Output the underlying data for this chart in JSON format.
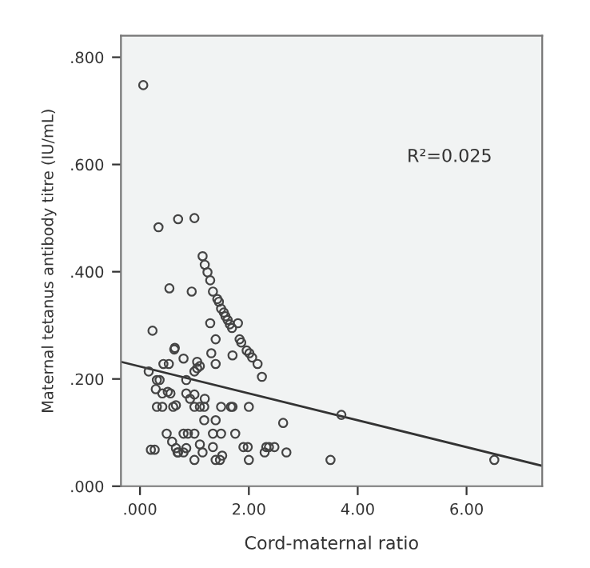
{
  "chart_data": {
    "type": "scatter",
    "xlabel": "Cord-maternal ratio",
    "ylabel": "Maternal tetanus antibody titre (IU/mL)",
    "annotations": [
      "R²=0.025"
    ],
    "grid": false,
    "xlim": [
      -0.35,
      7.39
    ],
    "ylim": [
      0,
      0.84
    ],
    "xticks": [
      {
        "value": 0,
        "label": ".000"
      },
      {
        "value": 2,
        "label": "2.00"
      },
      {
        "value": 4,
        "label": "4.00"
      },
      {
        "value": 6,
        "label": "6.00"
      }
    ],
    "yticks": [
      {
        "value": 0,
        "label": ".000"
      },
      {
        "value": 0.2,
        "label": ".200"
      },
      {
        "value": 0.4,
        "label": ".400"
      },
      {
        "value": 0.6,
        "label": ".600"
      },
      {
        "value": 0.8,
        "label": ".800"
      }
    ],
    "series": [
      {
        "marker": "circle",
        "color": "#444444",
        "x": [
          0.06,
          0.34,
          0.7,
          1.0,
          1.15,
          1.19,
          1.24,
          1.29,
          1.34,
          1.42,
          1.45,
          1.49,
          1.54,
          1.57,
          1.61,
          1.65,
          1.69,
          1.8,
          1.83,
          1.86,
          1.96,
          2.01,
          2.06,
          2.16,
          2.24,
          0.54,
          0.95,
          0.23,
          0.63,
          0.64,
          1.29,
          1.39,
          0.8,
          1.31,
          1.05,
          1.1,
          1.39,
          1.7,
          0.16,
          0.43,
          0.53,
          1.0,
          1.05,
          0.31,
          0.36,
          0.85,
          0.29,
          0.41,
          0.51,
          0.56,
          0.85,
          0.92,
          1.0,
          1.19,
          0.31,
          0.41,
          0.61,
          0.66,
          1.0,
          1.1,
          1.18,
          1.49,
          1.67,
          1.7,
          2.0,
          1.18,
          1.39,
          0.49,
          0.59,
          0.8,
          0.88,
          1.0,
          1.34,
          1.49,
          1.75,
          2.63,
          3.7,
          0.66,
          0.7,
          0.85,
          1.1,
          1.34,
          0.2,
          0.27,
          1.9,
          1.98,
          2.32,
          2.37,
          2.47,
          2.29,
          2.69,
          1.0,
          1.15,
          1.39,
          1.51,
          1.47,
          2.0,
          3.5,
          6.51,
          0.69,
          0.8
        ],
        "values": [
          0.748,
          0.483,
          0.498,
          0.5,
          0.429,
          0.413,
          0.399,
          0.384,
          0.363,
          0.349,
          0.344,
          0.331,
          0.324,
          0.317,
          0.31,
          0.302,
          0.295,
          0.304,
          0.274,
          0.268,
          0.253,
          0.248,
          0.24,
          0.228,
          0.204,
          0.369,
          0.363,
          0.29,
          0.255,
          0.258,
          0.304,
          0.274,
          0.238,
          0.248,
          0.232,
          0.224,
          0.228,
          0.244,
          0.214,
          0.228,
          0.228,
          0.214,
          0.22,
          0.198,
          0.198,
          0.198,
          0.181,
          0.173,
          0.176,
          0.173,
          0.173,
          0.163,
          0.171,
          0.163,
          0.148,
          0.148,
          0.148,
          0.151,
          0.148,
          0.148,
          0.148,
          0.148,
          0.148,
          0.148,
          0.148,
          0.123,
          0.123,
          0.098,
          0.083,
          0.098,
          0.098,
          0.098,
          0.098,
          0.098,
          0.098,
          0.118,
          0.133,
          0.071,
          0.063,
          0.071,
          0.078,
          0.073,
          0.068,
          0.068,
          0.073,
          0.073,
          0.073,
          0.073,
          0.073,
          0.063,
          0.063,
          0.049,
          0.063,
          0.049,
          0.057,
          0.049,
          0.049,
          0.049,
          0.049,
          0.063,
          0.063
        ]
      },
      {
        "type": "line",
        "color": "#333333",
        "x": [
          -0.35,
          7.39
        ],
        "values": [
          0.232,
          0.038
        ]
      }
    ]
  }
}
